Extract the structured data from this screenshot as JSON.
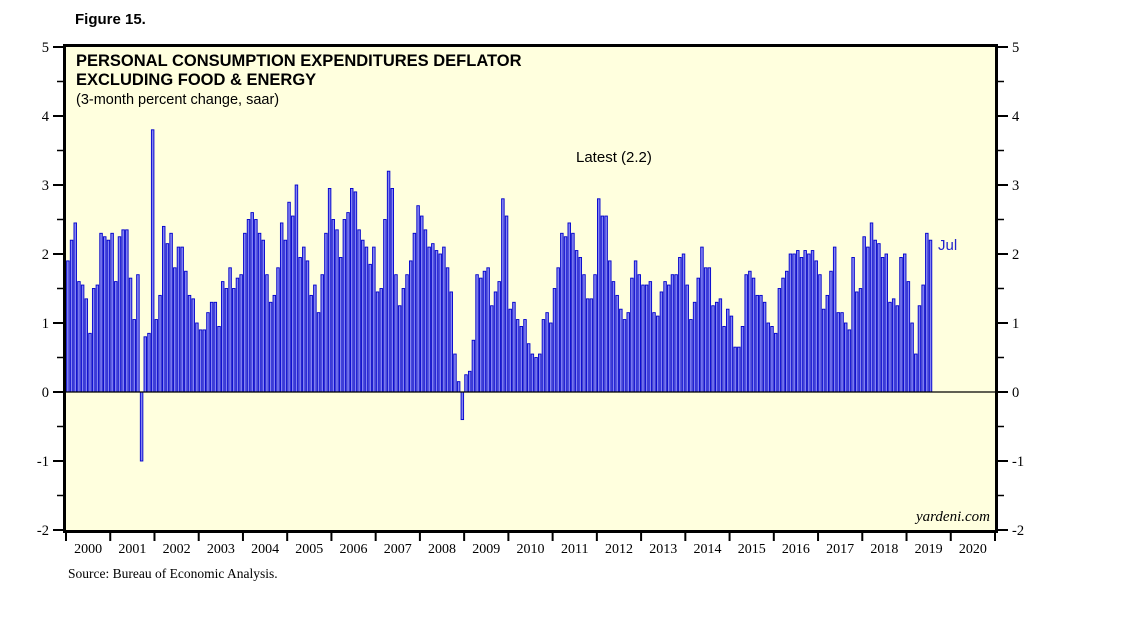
{
  "figure_label": "Figure 15.",
  "source": "Source: Bureau of Economic Analysis.",
  "colors": {
    "plot_bg": "#FFFFDE",
    "bar_fill": "#8484F2",
    "bar_stroke": "#0000CC",
    "frame": "#000000",
    "annotation_blue": "#2222CC",
    "text": "#000000"
  },
  "chart_data": {
    "type": "bar",
    "title": "PERSONAL CONSUMPTION EXPENDITURES DEFLATOR",
    "title_line2": "EXCLUDING FOOD & ENERGY",
    "subtitle": "(3-month percent change, saar)",
    "annotations": {
      "latest": "Latest (2.2)",
      "last_point": "Jul"
    },
    "watermark": "yardeni.com",
    "frequency": "monthly",
    "x_start": "2000-01",
    "x_end": "2019-07",
    "latest_value": 2.2,
    "ylim": [
      -2,
      5
    ],
    "y_ticks": [
      5,
      4,
      3,
      2,
      1,
      0,
      -1,
      -2
    ],
    "y_minor_step": 0.5,
    "x_axis_years": [
      "2000",
      "2001",
      "2002",
      "2003",
      "2004",
      "2005",
      "2006",
      "2007",
      "2008",
      "2009",
      "2010",
      "2011",
      "2012",
      "2013",
      "2014",
      "2015",
      "2016",
      "2017",
      "2018",
      "2019",
      "2020"
    ],
    "x_span_years": 21,
    "values": [
      1.9,
      2.2,
      2.45,
      1.6,
      1.55,
      1.35,
      0.85,
      1.5,
      1.55,
      2.3,
      2.25,
      2.2,
      2.3,
      1.6,
      2.25,
      2.35,
      2.35,
      1.65,
      1.05,
      1.7,
      -1.0,
      0.8,
      0.85,
      3.8,
      1.05,
      1.4,
      2.4,
      2.15,
      2.3,
      1.8,
      2.1,
      2.1,
      1.75,
      1.4,
      1.35,
      1.0,
      0.9,
      0.9,
      1.15,
      1.3,
      1.3,
      0.95,
      1.6,
      1.5,
      1.8,
      1.5,
      1.65,
      1.7,
      2.3,
      2.5,
      2.6,
      2.5,
      2.3,
      2.2,
      1.7,
      1.3,
      1.4,
      1.8,
      2.45,
      2.2,
      2.75,
      2.55,
      3.0,
      1.95,
      2.1,
      1.9,
      1.4,
      1.55,
      1.15,
      1.7,
      2.3,
      2.95,
      2.5,
      2.35,
      1.95,
      2.5,
      2.6,
      2.95,
      2.9,
      2.35,
      2.2,
      2.1,
      1.85,
      2.1,
      1.45,
      1.5,
      2.5,
      3.2,
      2.95,
      1.7,
      1.25,
      1.5,
      1.7,
      1.9,
      2.3,
      2.7,
      2.55,
      2.35,
      2.1,
      2.15,
      2.05,
      2.0,
      2.1,
      1.8,
      1.45,
      0.55,
      0.15,
      -0.4,
      0.25,
      0.3,
      0.75,
      1.7,
      1.65,
      1.75,
      1.8,
      1.25,
      1.45,
      1.6,
      2.8,
      2.55,
      1.2,
      1.3,
      1.05,
      0.95,
      1.05,
      0.7,
      0.55,
      0.5,
      0.55,
      1.05,
      1.15,
      1.0,
      1.5,
      1.8,
      2.3,
      2.25,
      2.45,
      2.3,
      2.05,
      1.95,
      1.7,
      1.35,
      1.35,
      1.7,
      2.8,
      2.55,
      2.55,
      1.9,
      1.6,
      1.4,
      1.2,
      1.05,
      1.15,
      1.65,
      1.9,
      1.7,
      1.55,
      1.55,
      1.6,
      1.15,
      1.1,
      1.45,
      1.6,
      1.55,
      1.7,
      1.7,
      1.95,
      2.0,
      1.55,
      1.05,
      1.3,
      1.65,
      2.1,
      1.8,
      1.8,
      1.25,
      1.3,
      1.35,
      0.95,
      1.2,
      1.1,
      0.65,
      0.65,
      0.95,
      1.7,
      1.75,
      1.65,
      1.4,
      1.4,
      1.3,
      1.0,
      0.95,
      0.85,
      1.5,
      1.65,
      1.75,
      2.0,
      2.0,
      2.05,
      1.95,
      2.05,
      2.0,
      2.05,
      1.9,
      1.7,
      1.2,
      1.4,
      1.75,
      2.1,
      1.15,
      1.15,
      1.0,
      0.9,
      1.95,
      1.45,
      1.5,
      2.25,
      2.1,
      2.45,
      2.2,
      2.15,
      1.95,
      2.0,
      1.3,
      1.35,
      1.25,
      1.95,
      2.0,
      1.6,
      1.0,
      0.55,
      1.25,
      1.55,
      2.3,
      2.2
    ]
  }
}
